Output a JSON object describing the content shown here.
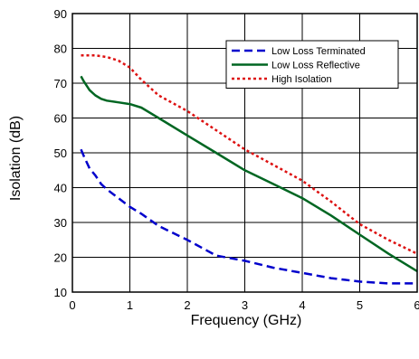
{
  "chart_data": {
    "type": "line",
    "title": "",
    "xlabel": "Frequency (GHz)",
    "ylabel": "Isolation (dB)",
    "xlim": [
      0,
      6
    ],
    "ylim": [
      10,
      90
    ],
    "xticks": [
      0,
      1,
      2,
      3,
      4,
      5,
      6
    ],
    "yticks": [
      10,
      20,
      30,
      40,
      50,
      60,
      70,
      80,
      90
    ],
    "xtick_labels": [
      "0",
      "1",
      "2",
      "3",
      "4",
      "5",
      "6"
    ],
    "ytick_labels": [
      "10",
      "20",
      "30",
      "40",
      "50",
      "60",
      "70",
      "80",
      "90"
    ],
    "grid": true,
    "legend_position": "top-right",
    "series": [
      {
        "name": "Low Loss Terminated",
        "color": "#0000cc",
        "dash": "dashed",
        "x": [
          0.15,
          0.2,
          0.3,
          0.4,
          0.5,
          0.6,
          0.8,
          1.0,
          1.2,
          1.5,
          2.0,
          2.5,
          3.0,
          3.5,
          4.0,
          4.5,
          5.0,
          5.5,
          6.0
        ],
        "y": [
          51,
          49,
          45.5,
          43.5,
          41,
          39.5,
          37,
          34.5,
          32.5,
          29,
          25,
          20.5,
          19,
          17,
          15.5,
          14,
          13,
          12.5,
          12.5
        ]
      },
      {
        "name": "Low Loss Reflective",
        "color": "#006622",
        "dash": "solid",
        "x": [
          0.15,
          0.2,
          0.3,
          0.4,
          0.5,
          0.6,
          0.8,
          1.0,
          1.2,
          1.5,
          2.0,
          2.5,
          3.0,
          3.5,
          4.0,
          4.5,
          5.0,
          5.5,
          6.0
        ],
        "y": [
          72,
          70.5,
          68,
          66.5,
          65.5,
          65,
          64.5,
          64,
          63,
          60,
          55,
          50,
          45,
          41,
          37,
          32,
          26.5,
          21,
          16
        ]
      },
      {
        "name": "High Isolation",
        "color": "#dd1111",
        "dash": "dotted",
        "x": [
          0.15,
          0.2,
          0.4,
          0.6,
          0.8,
          1.0,
          1.2,
          1.5,
          2.0,
          2.5,
          3.0,
          3.5,
          4.0,
          4.5,
          5.0,
          5.5,
          6.0
        ],
        "y": [
          78,
          78,
          78,
          77.5,
          76.5,
          74.5,
          71,
          66.5,
          62,
          56.5,
          51,
          46.5,
          42,
          36,
          29.5,
          25,
          21
        ]
      }
    ]
  }
}
